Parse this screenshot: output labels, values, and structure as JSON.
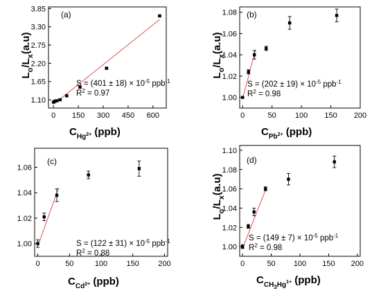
{
  "chart_data": [
    {
      "type": "scatter",
      "panel": "(a)",
      "xlabel": {
        "main": "C",
        "sub": "Hg",
        "sup": "2+",
        "unit": " (ppb)"
      },
      "ylabel": {
        "main": "L",
        "sub1": "o",
        "mid": "/L",
        "sub2": "x",
        "unit": "(a.u)"
      },
      "xlim": [
        -30,
        680
      ],
      "ylim": [
        0.85,
        3.9
      ],
      "xticks": [
        0,
        150,
        300,
        450,
        600
      ],
      "yticks": [
        1.1,
        1.65,
        2.2,
        2.75,
        3.3,
        3.85
      ],
      "ytick_labels": [
        "1.10",
        "1.65",
        "2.20",
        "2.75",
        "3.30",
        "3.85"
      ],
      "points": [
        {
          "x": 0,
          "y": 1.03,
          "err": 0.03
        },
        {
          "x": 10,
          "y": 1.06,
          "err": 0.03
        },
        {
          "x": 20,
          "y": 1.07,
          "err": 0.03
        },
        {
          "x": 40,
          "y": 1.1,
          "err": 0.03
        },
        {
          "x": 80,
          "y": 1.22,
          "err": 0.03
        },
        {
          "x": 160,
          "y": 1.48,
          "err": 0.03
        },
        {
          "x": 320,
          "y": 2.05,
          "err": 0.03
        },
        {
          "x": 640,
          "y": 3.63,
          "err": 0.03
        }
      ],
      "fit": {
        "x": [
          0,
          640
        ],
        "y": [
          0.96,
          3.52
        ]
      },
      "annotation": {
        "line1_pre": "S = (401 ± 18) × 10",
        "line1_exp": "-5",
        "line1_post": " ppb",
        "line1_unit_exp": "-1",
        "line2_pre": "R",
        "line2_exp": "2",
        "line2_post": " = 0.97"
      }
    },
    {
      "type": "scatter",
      "panel": "(b)",
      "xlabel": {
        "main": "C",
        "sub": "Pb",
        "sup": "2+",
        "unit": " (ppb)"
      },
      "ylabel": {
        "main": "L",
        "sub1": "o",
        "mid": "/L",
        "sub2": "x",
        "unit": "(a.u)"
      },
      "xlim": [
        -5,
        200
      ],
      "ylim": [
        0.99,
        1.085
      ],
      "xticks": [
        0,
        50,
        100,
        150,
        200
      ],
      "yticks": [
        1.0,
        1.02,
        1.04,
        1.06,
        1.08
      ],
      "ytick_labels": [
        "1.00",
        "1.02",
        "1.04",
        "1.06",
        "1.08"
      ],
      "points": [
        {
          "x": 0,
          "y": 1.0,
          "err": 0.0
        },
        {
          "x": 10,
          "y": 1.024,
          "err": 0.002
        },
        {
          "x": 20,
          "y": 1.04,
          "err": 0.004
        },
        {
          "x": 40,
          "y": 1.046,
          "err": 0.002
        },
        {
          "x": 80,
          "y": 1.07,
          "err": 0.006
        },
        {
          "x": 160,
          "y": 1.077,
          "err": 0.006
        }
      ],
      "fit": {
        "x": [
          0,
          22
        ],
        "y": [
          0.999,
          1.045
        ]
      },
      "annotation": {
        "line1_pre": "S = (202 ± 19) × 10",
        "line1_exp": "-5",
        "line1_post": " ppb",
        "line1_unit_exp": "-1",
        "line2_pre": "R",
        "line2_exp": "2",
        "line2_post": " = 0.98"
      }
    },
    {
      "type": "scatter",
      "panel": "(c)",
      "xlabel": {
        "main": "C",
        "sub": "Cd",
        "sup": "2+",
        "unit": " (ppb)"
      },
      "ylabel": null,
      "xlim": [
        -5,
        205
      ],
      "ylim": [
        0.99,
        1.075
      ],
      "xticks": [
        0,
        50,
        100,
        150,
        200
      ],
      "yticks": [
        1.0,
        1.02,
        1.04,
        1.06
      ],
      "ytick_labels": [
        "1.00",
        "1.02",
        "1.04",
        "1.06"
      ],
      "points": [
        {
          "x": 0,
          "y": 1.0,
          "err": 0.003
        },
        {
          "x": 10,
          "y": 1.021,
          "err": 0.003
        },
        {
          "x": 30,
          "y": 1.038,
          "err": 0.005
        },
        {
          "x": 80,
          "y": 1.054,
          "err": 0.003
        },
        {
          "x": 160,
          "y": 1.059,
          "err": 0.006
        }
      ],
      "fit": {
        "x": [
          0,
          33
        ],
        "y": [
          0.998,
          1.044
        ]
      },
      "annotation": {
        "line1_pre": "S = (122 ± 31) × 10",
        "line1_exp": "-5",
        "line1_post": " ppb",
        "line1_unit_exp": "-1",
        "line2_pre": "R",
        "line2_exp": "2",
        "line2_post": " = 0.88"
      }
    },
    {
      "type": "scatter",
      "panel": "(d)",
      "xlabel": {
        "main": "C",
        "sub": "CH",
        "sub_2": "3",
        "sub_3": "Hg",
        "sup": "1+",
        "unit": " (ppb)"
      },
      "ylabel": {
        "main": "L",
        "sub1": "o",
        "mid": "/L",
        "sub2": "x",
        "unit": "(a.u)"
      },
      "xlim": [
        -5,
        205
      ],
      "ylim": [
        0.99,
        1.105
      ],
      "xticks": [
        0,
        50,
        100,
        150,
        200
      ],
      "yticks": [
        1.0,
        1.02,
        1.04,
        1.06,
        1.08,
        1.1
      ],
      "ytick_labels": [
        "1.00",
        "1.02",
        "1.04",
        "1.06",
        "1.08",
        "1.10"
      ],
      "points": [
        {
          "x": 0,
          "y": 1.0,
          "err": 0.002
        },
        {
          "x": 10,
          "y": 1.021,
          "err": 0.002
        },
        {
          "x": 20,
          "y": 1.036,
          "err": 0.004
        },
        {
          "x": 40,
          "y": 1.06,
          "err": 0.002
        },
        {
          "x": 80,
          "y": 1.07,
          "err": 0.006
        },
        {
          "x": 160,
          "y": 1.088,
          "err": 0.006
        }
      ],
      "fit": {
        "x": [
          0,
          42
        ],
        "y": [
          0.998,
          1.062
        ]
      },
      "annotation": {
        "line1_pre": "S = (149 ± 7) × 10",
        "line1_exp": "-5",
        "line1_post": " ppb",
        "line1_unit_exp": "-1",
        "line2_pre": "R",
        "line2_exp": "2",
        "line2_post": " = 0.98"
      }
    }
  ],
  "colors": {
    "axis": "#000000",
    "marker": "#000000",
    "fit": "#e06060"
  }
}
